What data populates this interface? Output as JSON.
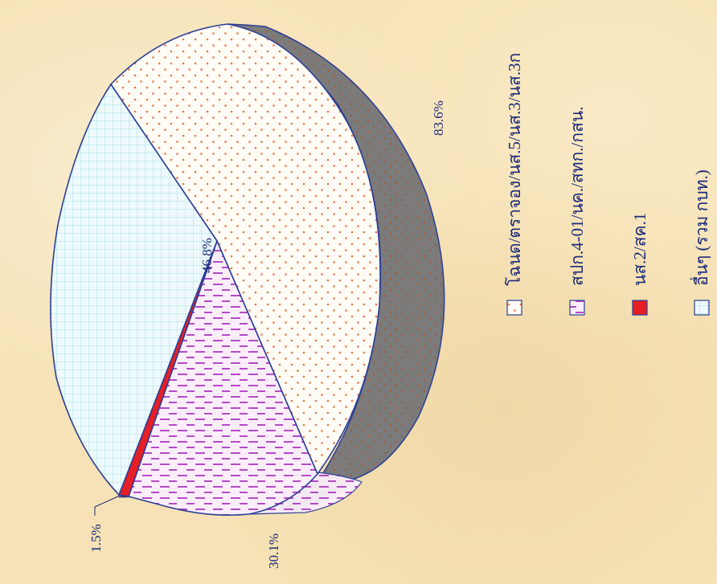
{
  "chart_data": {
    "type": "pie",
    "title": "",
    "slices": [
      {
        "label": "โฉนด/ตราจอง/นส.5/นส.3/นส.3ก",
        "value": 83.6,
        "color": "#fffdf5",
        "pattern": "dots"
      },
      {
        "label": "สปก.4-01/นค./สทก./กสน.",
        "value": 30.1,
        "color": "#fbeefa",
        "pattern": "dashes"
      },
      {
        "label": "นส.2/สค.1",
        "value": 1.5,
        "color": "#e51f25",
        "pattern": "solid"
      },
      {
        "label": "อื่นๆ (รวม กบท.)",
        "value": 46.8,
        "color": "#e9f8fb",
        "pattern": "grid"
      }
    ],
    "data_labels": [
      "83.6%",
      "30.1%",
      "1.5%",
      "46.8%"
    ],
    "legend_placement": "right",
    "style": "3d-pie-rotated"
  },
  "colors": {
    "outline": "#2a3e97",
    "side_shade": "#7b7b7b",
    "dot_color": "#e8764a",
    "dash_color": "#b44ac6",
    "grid_color": "#8fd6e6",
    "red_dark": "#7a1010",
    "text": "#1b2a78"
  }
}
